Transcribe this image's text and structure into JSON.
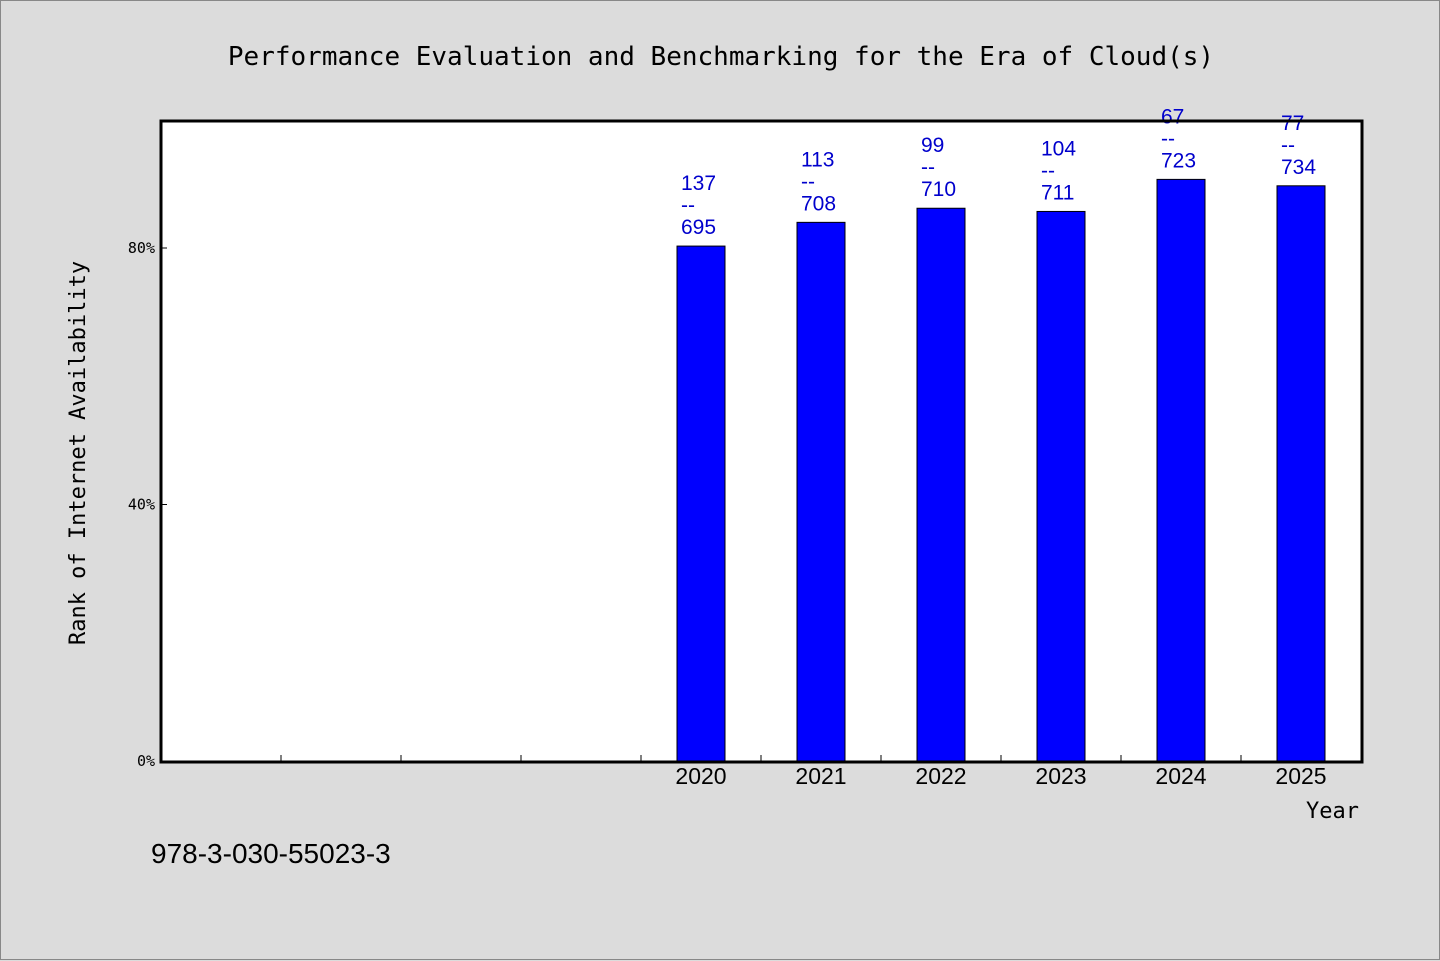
{
  "chart_data": {
    "type": "bar",
    "title": "Performance Evaluation and Benchmarking for the Era of Cloud(s)",
    "xlabel": "Year",
    "ylabel": "Rank of Internet Availability",
    "categories": [
      "",
      "",
      "",
      "",
      "2020",
      "2021",
      "2022",
      "2023",
      "2024",
      "2025"
    ],
    "values": [
      null,
      null,
      null,
      null,
      80.3,
      84.0,
      86.2,
      85.7,
      90.7,
      89.7
    ],
    "value_unit": "%",
    "data_labels": [
      null,
      null,
      null,
      null,
      [
        "137",
        "--",
        "695"
      ],
      [
        "113",
        "--",
        "708"
      ],
      [
        "99",
        "--",
        "710"
      ],
      [
        "104",
        "--",
        "711"
      ],
      [
        "67",
        "--",
        "723"
      ],
      [
        "77",
        "--",
        "734"
      ]
    ],
    "yticks": [
      "0%",
      "40%",
      "80%"
    ],
    "ytick_values": [
      0,
      40,
      80
    ],
    "ylim": [
      0,
      100
    ],
    "bar_color": "#0000ff",
    "label_color": "#0000cc",
    "grid": false,
    "legend": "none"
  },
  "footnote": "978-3-030-55023-3"
}
